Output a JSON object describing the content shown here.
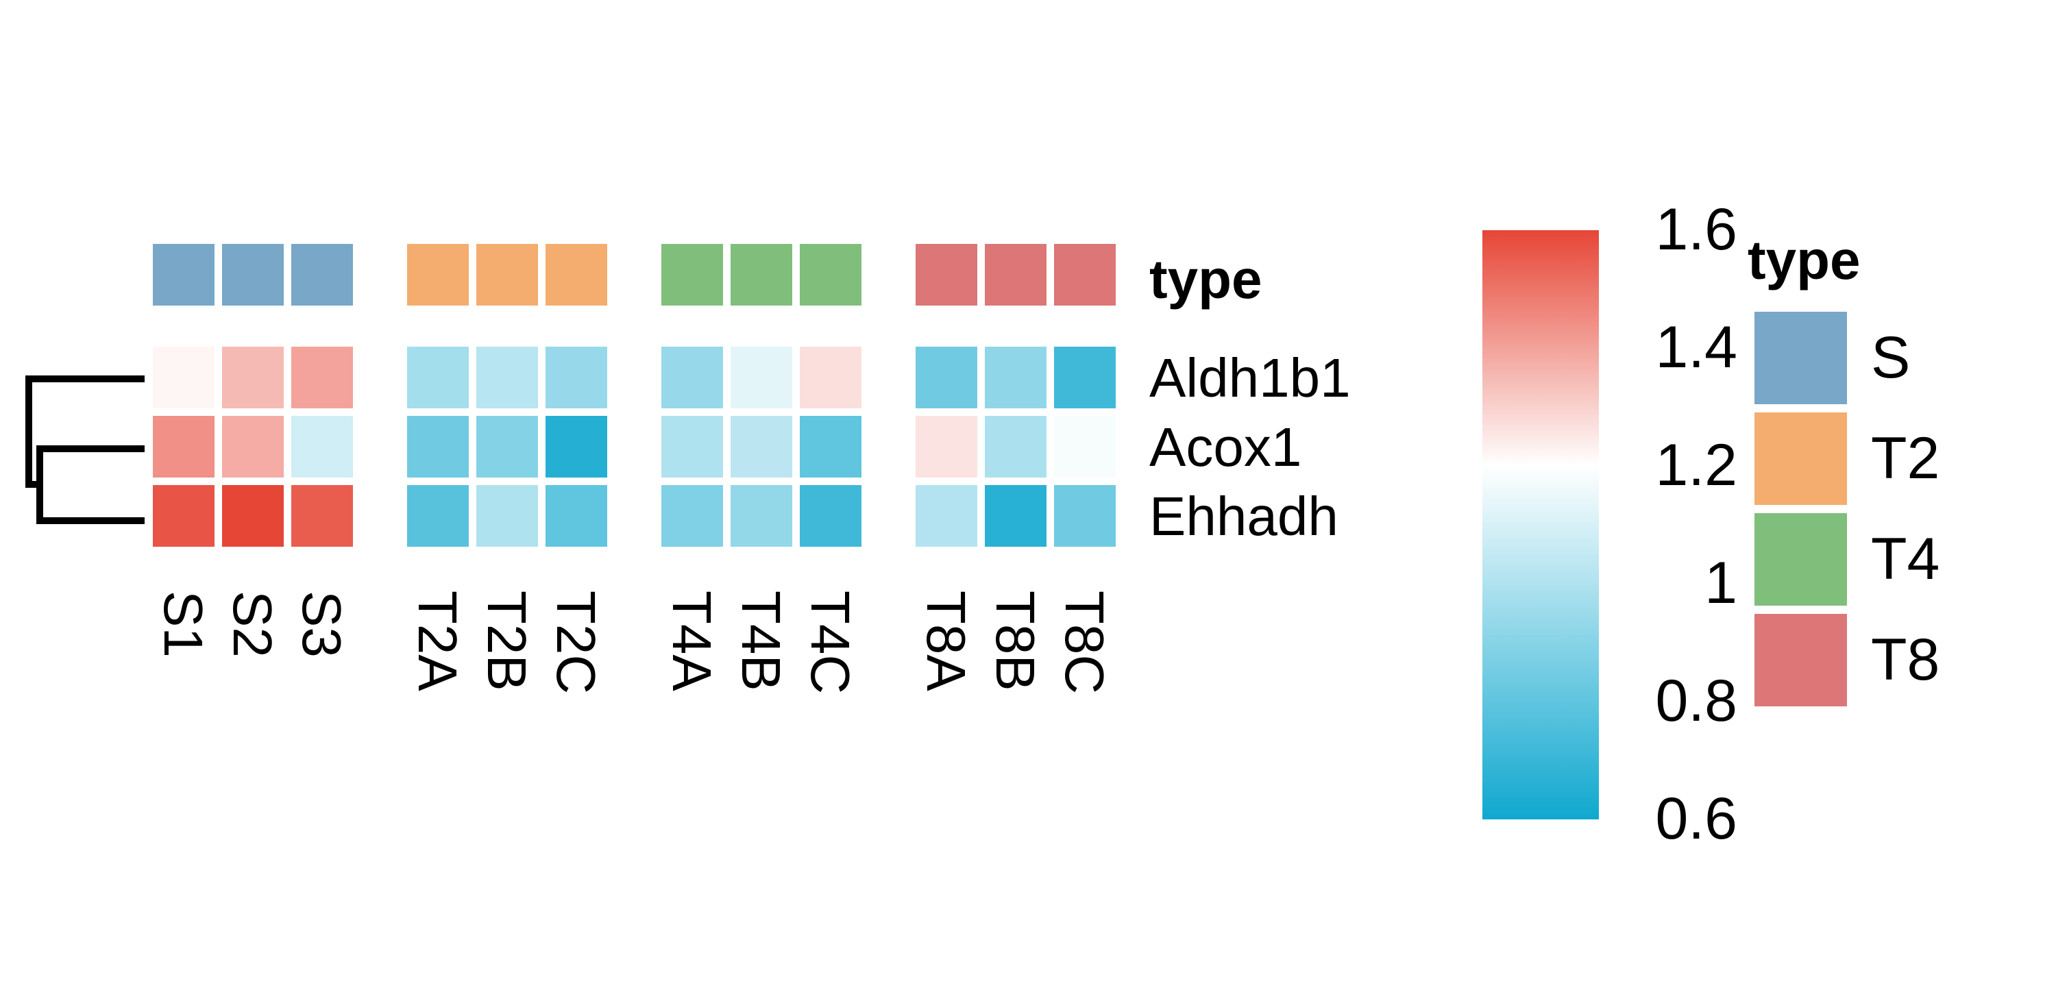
{
  "chart_data": {
    "type": "heatmap",
    "columns": [
      "S1",
      "S2",
      "S3",
      "T2A",
      "T2B",
      "T2C",
      "T4A",
      "T4B",
      "T4C",
      "T8A",
      "T8B",
      "T8C"
    ],
    "column_groups": [
      "S",
      "S",
      "S",
      "T2",
      "T2",
      "T2",
      "T4",
      "T4",
      "T4",
      "T8",
      "T8",
      "T8"
    ],
    "rows": [
      "Aldh1b1",
      "Acox1",
      "Ehhadh"
    ],
    "values": [
      [
        1.22,
        1.35,
        1.4,
        0.97,
        1.02,
        0.94,
        0.94,
        1.13,
        1.27,
        0.84,
        0.92,
        0.72
      ],
      [
        1.44,
        1.38,
        1.08,
        0.84,
        0.89,
        0.65,
        1.0,
        1.03,
        0.8,
        1.26,
        0.99,
        1.18
      ],
      [
        1.57,
        1.62,
        1.55,
        0.78,
        1.0,
        0.8,
        0.88,
        0.93,
        0.72,
        1.01,
        0.66,
        0.84
      ]
    ],
    "annotation": {
      "title": "type",
      "levels": [
        {
          "name": "S",
          "color": "#78A7C8"
        },
        {
          "name": "T2",
          "color": "#F4AD6E"
        },
        {
          "name": "T4",
          "color": "#7FBF7B"
        },
        {
          "name": "T8",
          "color": "#DC7677"
        }
      ]
    },
    "colorbar": {
      "min": 0.6,
      "mid": 1.2,
      "max": 1.6,
      "low_color": "#10A8CF",
      "mid_color": "#FFFFFF",
      "high_color": "#E64636",
      "ticks": [
        "1.6",
        "1.4",
        "1.2",
        "1",
        "0.8",
        "0.6"
      ],
      "tick_values": [
        1.6,
        1.4,
        1.2,
        1.0,
        0.8,
        0.6
      ],
      "range": [
        0.6,
        1.6
      ]
    },
    "row_dendrogram": true,
    "grid": false,
    "legend_placement": "right"
  }
}
